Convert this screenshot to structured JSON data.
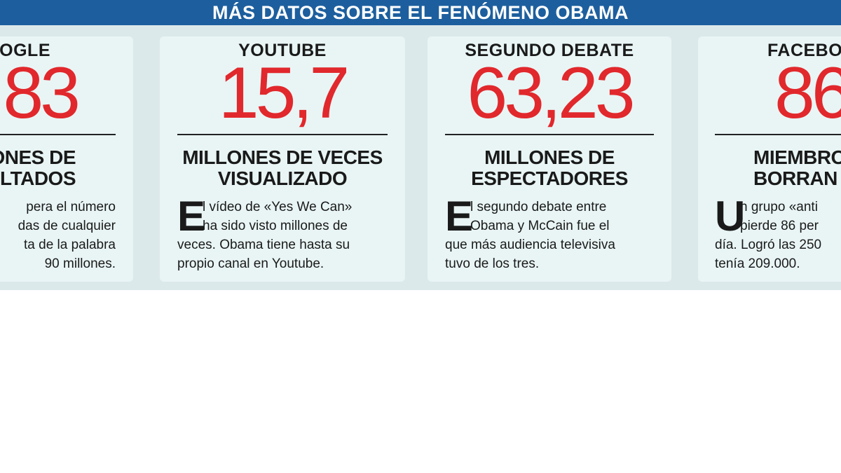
{
  "header": {
    "title": "MÁS DATOS SOBRE EL FENÓMENO OBAMA"
  },
  "cards": [
    {
      "label": "OGLE",
      "number": "83",
      "subtitle": [
        "IONES DE",
        "LTADOS"
      ],
      "drop_cap": null,
      "body": [
        "pera el número",
        "das de cualquier",
        "ta de la palabra",
        "90 millones."
      ]
    },
    {
      "label": "YOUTUBE",
      "number": "15,7",
      "subtitle": [
        "MILLONES DE VECES",
        "VISUALIZADO"
      ],
      "drop_cap": "E",
      "body": [
        "l vídeo de «Yes We Can»",
        "ha sido visto millones de",
        "veces. Obama tiene hasta su",
        "propio canal en Youtube."
      ]
    },
    {
      "label": "SEGUNDO DEBATE",
      "number": "63,23",
      "subtitle": [
        "MILLONES DE",
        "ESPECTADORES"
      ],
      "drop_cap": "E",
      "body": [
        "l segundo debate entre",
        "Obama y McCain fue el",
        "que más audiencia televisiva",
        "tuvo de los tres."
      ]
    },
    {
      "label": "FACEBO",
      "number": "86",
      "subtitle": [
        "MIEMBRO",
        "BORRAN A"
      ],
      "drop_cap": "U",
      "body": [
        "n grupo «anti",
        "pierde 86 per",
        "día. Logró las 250",
        "tenía 209.000."
      ]
    }
  ]
}
